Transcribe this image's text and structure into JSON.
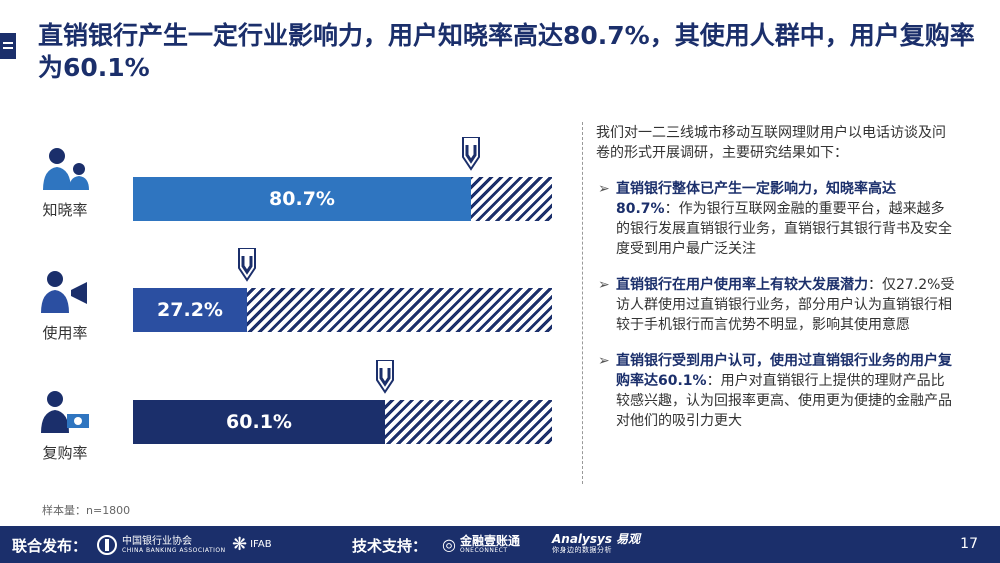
{
  "title": "直销银行产生一定行业影响力，用户知晓率高达80.7%，其使用人群中，用户复购率为60.1%",
  "chart_data": {
    "type": "bar",
    "orientation": "horizontal",
    "categories": [
      "知晓率",
      "使用率",
      "复购率"
    ],
    "values": [
      80.7,
      27.2,
      60.1
    ],
    "value_labels": [
      "80.7%",
      "27.2%",
      "60.1%"
    ],
    "ylim": [
      0,
      100
    ],
    "colors": [
      "#2f75c0",
      "#2b4fa1",
      "#1b2f6b"
    ],
    "remainder_pattern": "diagonal-hatch"
  },
  "notes": {
    "intro": "我们对一二三线城市移动互联网理财用户以电话访谈及问卷的形式开展调研，主要研究结果如下：",
    "bullets": [
      {
        "bold": "直销银行整体已产生一定影响力，知晓率高达80.7%",
        "text": "：作为银行互联网金融的重要平台，越来越多的银行发展直销银行业务，直销银行其银行背书及安全度受到用户最广泛关注"
      },
      {
        "bold": "直销银行在用户使用率上有较大发展潜力",
        "text": "：仅27.2%受访人群使用过直销银行业务，部分用户认为直销银行相较于手机银行而言优势不明显，影响其使用意愿"
      },
      {
        "bold": "直销银行受到用户认可，使用过直销银行业务的用户复购率达60.1%",
        "text": "：用户对直销银行上提供的理财产品比较感兴趣，认为回报率更高、使用更为便捷的金融产品对他们的吸引力更大"
      }
    ]
  },
  "sample": "样本量：n=1800",
  "footer": {
    "publisher_label": "联合发布：",
    "support_label": "技术支持：",
    "logo1": "中国银行业协会",
    "logo1_sub": "CHINA BANKING ASSOCIATION",
    "logo2": "IFAB",
    "logo3": "金融壹账通",
    "logo3_sub": "ONECONNECT",
    "logo4": "Analysys 易观",
    "logo4_sub": "你身边的数据分析",
    "page": "17"
  }
}
